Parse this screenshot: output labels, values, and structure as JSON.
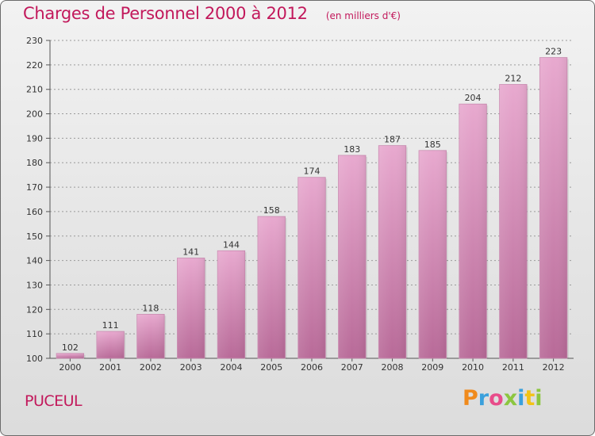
{
  "header": {
    "title": "Charges de Personnel 2000 à 2012",
    "unit_note": "(en milliers d'€)"
  },
  "footer": {
    "town": "PUCEUL",
    "logo_text": "Proxiti"
  },
  "colors": {
    "title": "#c2185b",
    "bar_top": "#e8a9cf",
    "bar_bottom": "#b86a98",
    "grid": "#8a8a8a"
  },
  "chart_data": {
    "type": "bar",
    "title": "Charges de Personnel 2000 à 2012",
    "subtitle": "(en milliers d'€)",
    "xlabel": "",
    "ylabel": "",
    "categories": [
      "2000",
      "2001",
      "2002",
      "2003",
      "2004",
      "2005",
      "2006",
      "2007",
      "2008",
      "2009",
      "2010",
      "2011",
      "2012"
    ],
    "values": [
      102,
      111,
      118,
      141,
      144,
      158,
      174,
      183,
      187,
      185,
      204,
      212,
      223
    ],
    "ylim": [
      100,
      230
    ],
    "yticks": [
      100,
      110,
      120,
      130,
      140,
      150,
      160,
      170,
      180,
      190,
      200,
      210,
      220,
      230
    ],
    "grid": "horizontal dashed",
    "data_labels": true,
    "legend": "none"
  }
}
